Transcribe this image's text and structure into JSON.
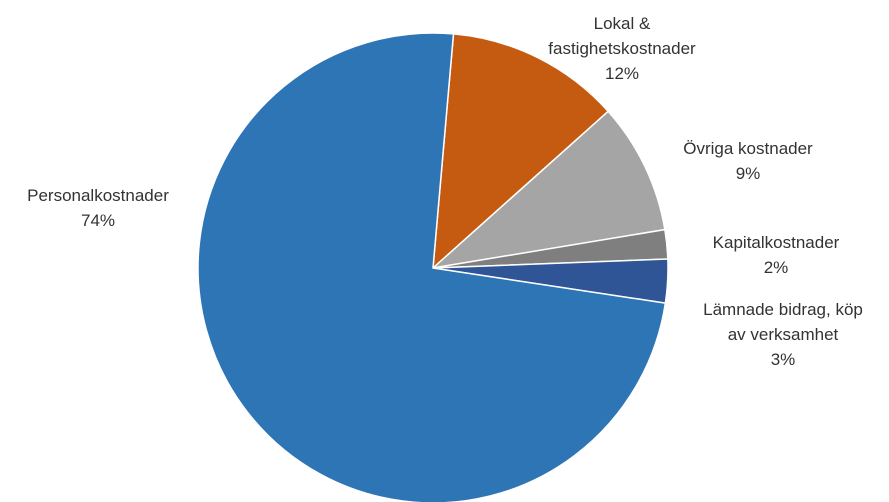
{
  "chart_data": {
    "type": "pie",
    "title": "",
    "slices": [
      {
        "name": "Lokal & fastighetskostnader",
        "label_lines": [
          "Lokal &",
          "fastighetskostnader"
        ],
        "percent_label": "12%",
        "value": 12,
        "color": "#C55A11"
      },
      {
        "name": "Övriga kostnader",
        "label_lines": [
          "Övriga kostnader"
        ],
        "percent_label": "9%",
        "value": 9,
        "color": "#A5A5A5"
      },
      {
        "name": "Kapitalkostnader",
        "label_lines": [
          "Kapitalkostnader"
        ],
        "percent_label": "2%",
        "value": 2,
        "color": "#7F7F7F"
      },
      {
        "name": "Lämnade bidrag, köp av verksamhet",
        "label_lines": [
          "Lämnade bidrag, köp",
          "av verksamhet"
        ],
        "percent_label": "3%",
        "value": 3,
        "color": "#2F5597"
      },
      {
        "name": "Personalkostnader",
        "label_lines": [
          "Personalkostnader"
        ],
        "percent_label": "74%",
        "value": 74,
        "color": "#2E75B6"
      }
    ],
    "legend": "none"
  }
}
